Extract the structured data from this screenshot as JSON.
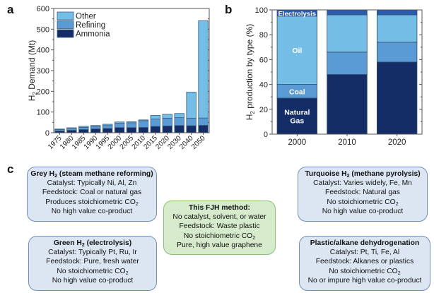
{
  "panels": {
    "a": "a",
    "b": "b",
    "c": "c"
  },
  "chart_data": [
    {
      "id": "a",
      "type": "bar",
      "stacked": true,
      "title": "",
      "xlabel": "",
      "ylabel_main": "H",
      "ylabel_sub": "2",
      "ylabel_rest": " Demand (Mt)",
      "ylim": [
        0,
        600
      ],
      "yticks": [
        0,
        100,
        200,
        300,
        400,
        500,
        600
      ],
      "categories": [
        "1975",
        "1980",
        "1985",
        "1990",
        "1995",
        "2000",
        "2005",
        "2010",
        "2015",
        "2020",
        "2030",
        "2040",
        "2050"
      ],
      "series": [
        {
          "name": "Ammonia",
          "color": "#142d66",
          "values": [
            9,
            12,
            16,
            19,
            21,
            25,
            25,
            26,
            31,
            33,
            35,
            34,
            36
          ]
        },
        {
          "name": "Refining",
          "color": "#5b9bd5",
          "values": [
            6,
            8,
            10,
            12,
            14,
            21,
            23,
            32,
            35,
            37,
            38,
            36,
            35
          ]
        },
        {
          "name": "Other",
          "color": "#74bde6",
          "values": [
            3,
            4,
            5,
            4,
            6,
            6,
            5,
            4,
            18,
            19,
            20,
            126,
            470
          ]
        }
      ],
      "legend": {
        "placement": "top-left",
        "order": [
          "Other",
          "Refining",
          "Ammonia"
        ]
      }
    },
    {
      "id": "b",
      "type": "bar",
      "stacked": true,
      "title": "",
      "xlabel": "",
      "ylabel_main": "H",
      "ylabel_sub": "2",
      "ylabel_rest": " production by type (%)",
      "ylim": [
        0,
        100
      ],
      "yticks": [
        0,
        20,
        40,
        60,
        80,
        100
      ],
      "categories": [
        "2000",
        "2010",
        "2020"
      ],
      "series": [
        {
          "name": "Natural Gas",
          "label_lines": [
            "Natural",
            "Gas"
          ],
          "color": "#142d66",
          "values": [
            29,
            48,
            58
          ]
        },
        {
          "name": "Coal",
          "label_lines": [
            "Coal"
          ],
          "color": "#5b9bd5",
          "values": [
            11,
            18,
            16
          ]
        },
        {
          "name": "Oil",
          "label_lines": [
            "Oil"
          ],
          "color": "#74bde6",
          "values": [
            55,
            30,
            22
          ]
        },
        {
          "name": "Electrolysis",
          "label_lines": [
            "Electrolysis"
          ],
          "color": "#2a5cb0",
          "values": [
            5,
            4,
            4
          ]
        }
      ],
      "annotations": "series labels inside 2000 bar"
    }
  ],
  "methods": {
    "grey": {
      "title_pre": "Grey H",
      "title_sub": "2",
      "title_post": " (steam methane reforming)",
      "lines": [
        "Catalyst: Typically Ni, Al, Zn",
        "Feedstock: Coal or natural gas"
      ],
      "co2_pre": "Produces stoichiometric CO",
      "co2_sub": "2",
      "last": "No high value co-product"
    },
    "green": {
      "title_pre": "Green H",
      "title_sub": "2",
      "title_post": " (electrolysis)",
      "lines": [
        "Catalyst: Typically Pt, Ru, Ir",
        "Feedstock: Pure, fresh water"
      ],
      "co2_pre": "No stoichiometric CO",
      "co2_sub": "2",
      "last": "No high value co-product"
    },
    "fjh": {
      "title": "This FJH method:",
      "lines": [
        "No catalyst, solvent, or water",
        "Feedstock: Waste plastic"
      ],
      "co2_pre": "No stoichiometric CO",
      "co2_sub": "2",
      "last": "Pure, high value graphene"
    },
    "turquoise": {
      "title_pre": "Turquoise H",
      "title_sub": "2",
      "title_post": " (methane pyrolysis)",
      "lines": [
        "Catalyst: Varies widely, Fe, Mn",
        "Feedstock: Natural gas"
      ],
      "co2_pre": "No stoichiometric CO",
      "co2_sub": "2",
      "last": "No high value co-product"
    },
    "plastic": {
      "title": "Plastic/alkane dehydrogenation",
      "lines": [
        "Catalyst: Pt, Ti, Fe, Al",
        "Feedstock: Alkanes or plastics"
      ],
      "co2_pre": "No stoichiometric CO",
      "co2_sub": "2",
      "last": "No or impure high value co-product"
    }
  }
}
